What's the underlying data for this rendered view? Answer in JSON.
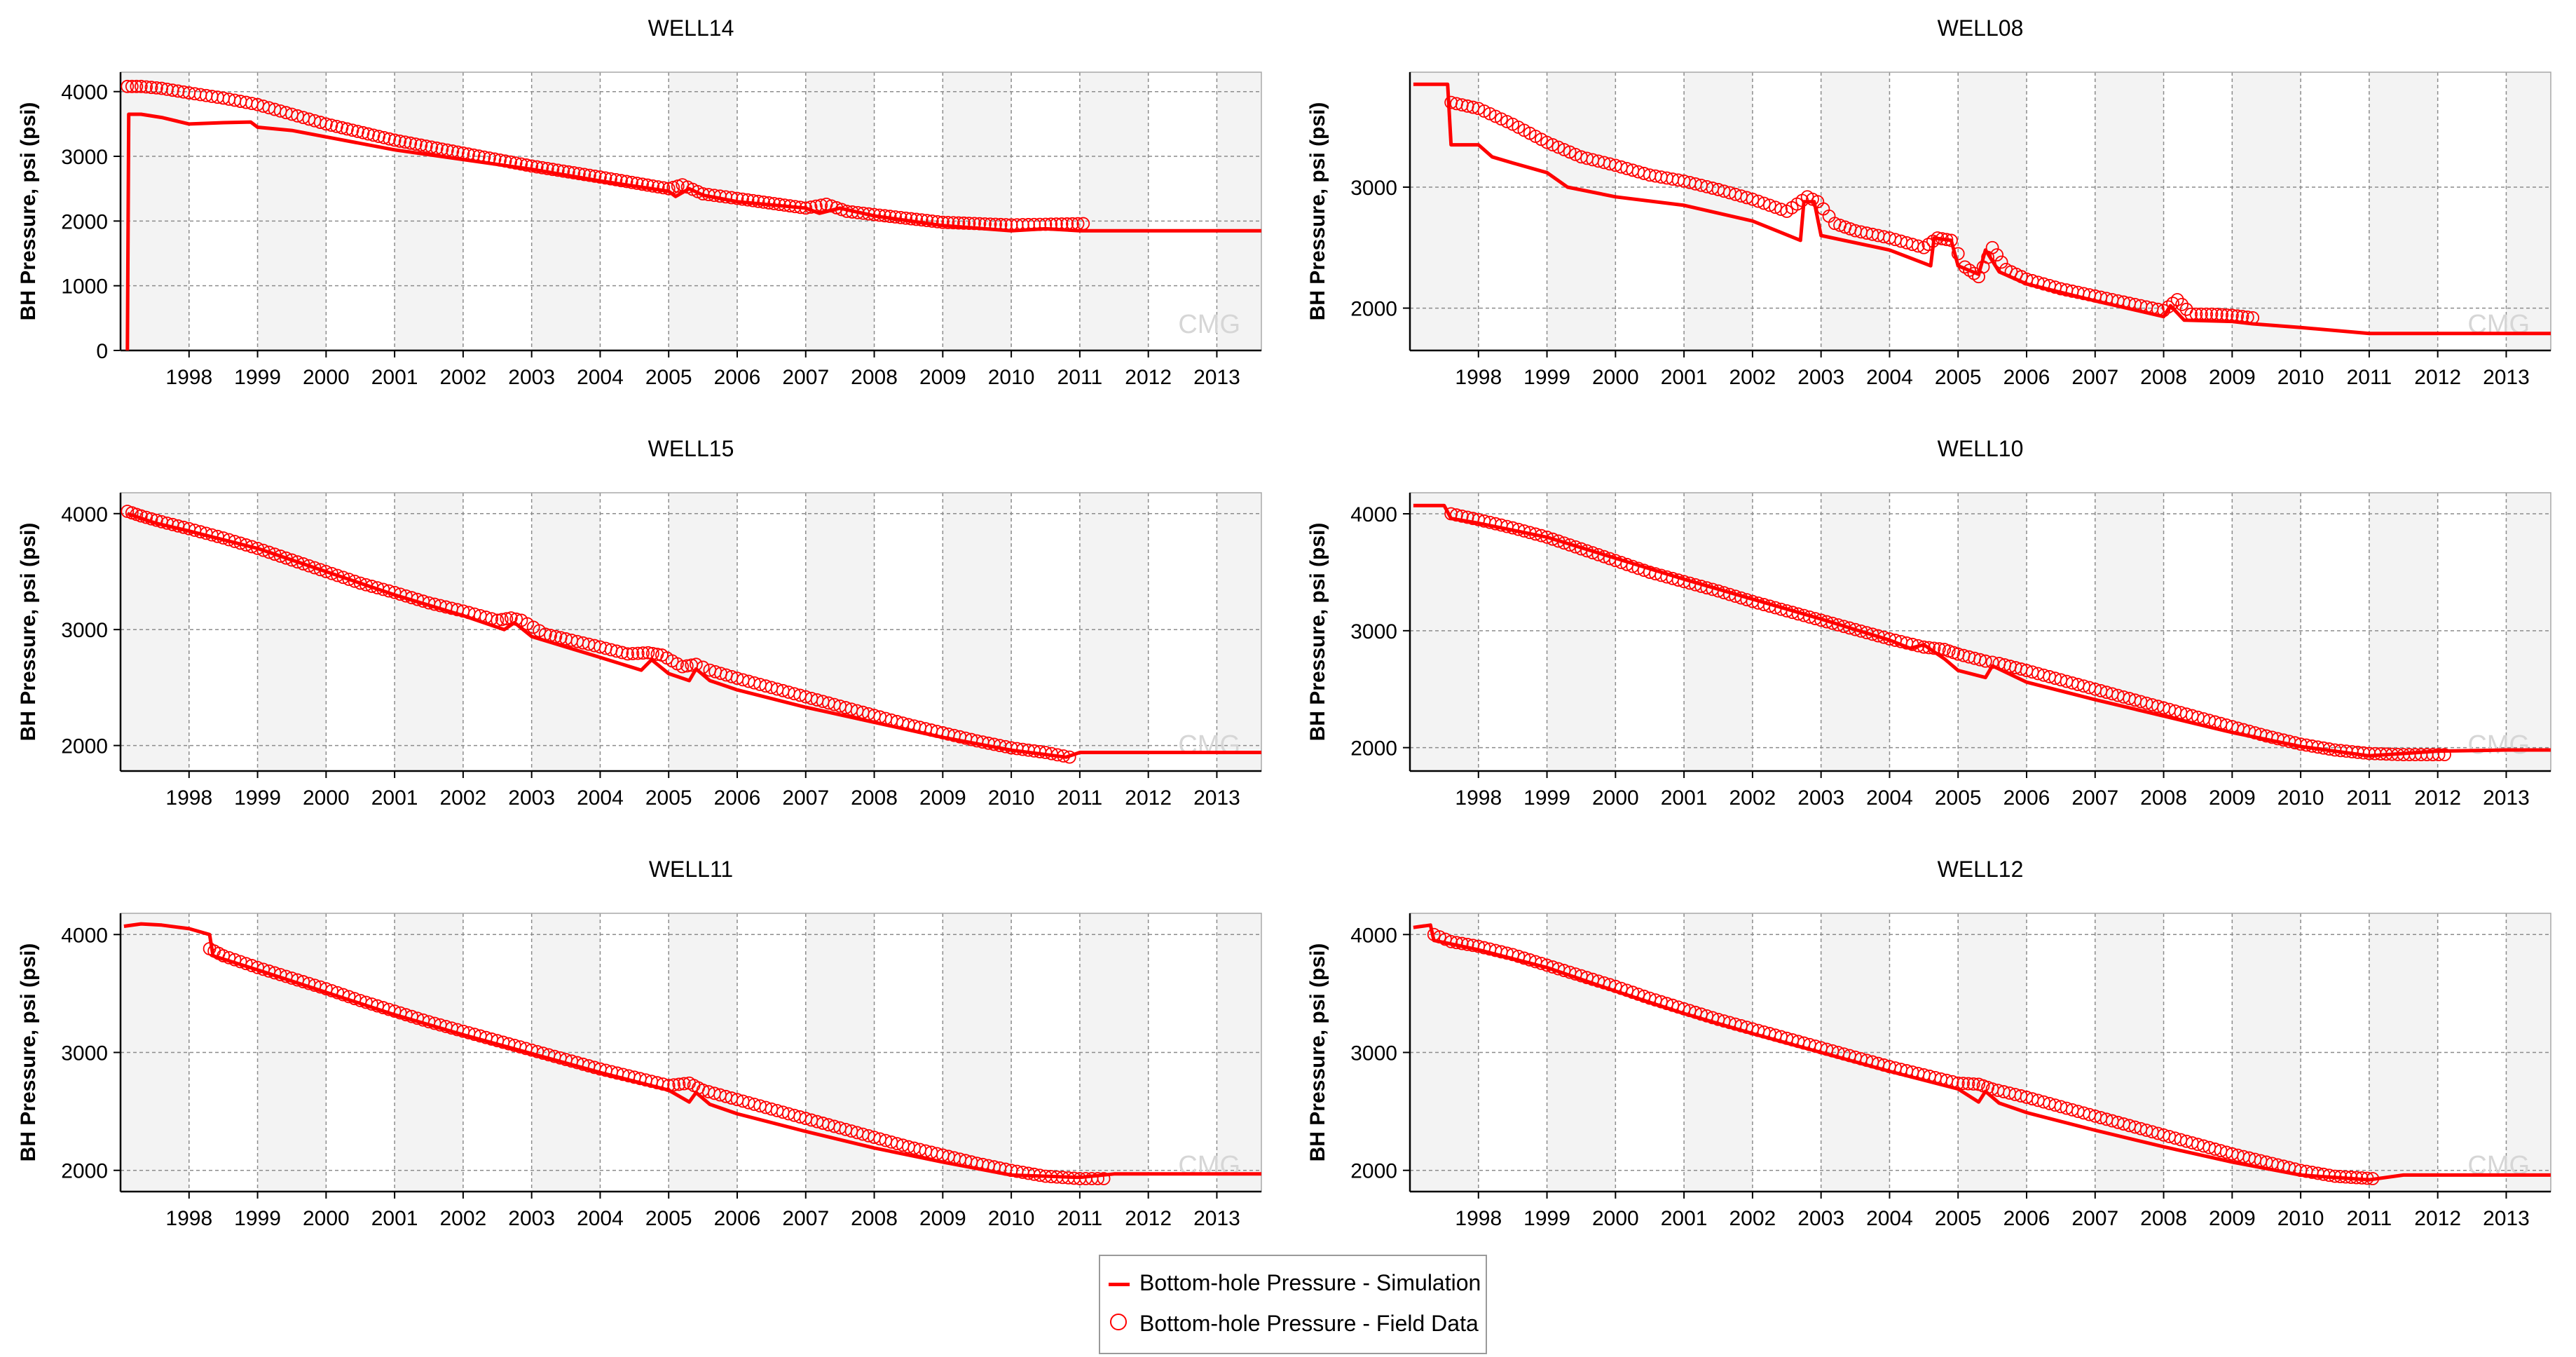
{
  "colors": {
    "simulation": "#ff0000",
    "field": "#ff0000",
    "plot_bg": "#f3f3f3",
    "grid": "#8c8c8c",
    "axis": "#000000",
    "watermark": "#d6d6d6"
  },
  "watermark": "CMG",
  "legend": {
    "simulation_label": "Bottom-hole Pressure - Simulation",
    "field_label": "Bottom-hole Pressure - Field Data"
  },
  "chart_data": [
    {
      "type": "line",
      "title": "WELL14",
      "xlabel": "",
      "ylabel": "BH Pressure, psi (psi)",
      "xlim": [
        1997,
        2013.65
      ],
      "ylim": [
        0,
        4300
      ],
      "yticks": [
        0,
        1000,
        2000,
        3000,
        4000
      ],
      "xticks": [
        1998,
        1999,
        2000,
        2001,
        2002,
        2003,
        2004,
        2005,
        2006,
        2007,
        2008,
        2009,
        2010,
        2011,
        2012,
        2013
      ],
      "series": [
        {
          "name": "Bottom-hole Pressure - Simulation",
          "style": "line",
          "x": [
            1997.1,
            1997.12,
            1997.15,
            1997.3,
            1997.6,
            1998.0,
            1998.5,
            1998.9,
            1999.0,
            1999.5,
            2000.0,
            2001.0,
            2002.0,
            2003.0,
            2004.0,
            2005.0,
            2005.1,
            2005.3,
            2005.5,
            2006.0,
            2007.0,
            2007.2,
            2007.5,
            2008.0,
            2009.0,
            2010.0,
            2010.5,
            2011.0,
            2012.0,
            2013.0,
            2013.65
          ],
          "y": [
            0,
            3650,
            3650,
            3650,
            3600,
            3500,
            3520,
            3530,
            3450,
            3400,
            3300,
            3100,
            2950,
            2800,
            2620,
            2460,
            2380,
            2500,
            2400,
            2300,
            2200,
            2120,
            2200,
            2080,
            1930,
            1850,
            1880,
            1850,
            1850,
            1850,
            1850
          ]
        },
        {
          "name": "Bottom-hole Pressure - Field Data",
          "style": "markers",
          "x": [
            1997.1,
            1997.3,
            1997.6,
            1998.0,
            1998.5,
            1999.0,
            1999.5,
            2000.0,
            2001.0,
            2002.0,
            2003.0,
            2004.0,
            2005.0,
            2005.2,
            2005.5,
            2006.0,
            2007.0,
            2007.3,
            2007.6,
            2008.0,
            2009.0,
            2010.0,
            2010.5,
            2011.05
          ],
          "y": [
            4080,
            4080,
            4050,
            3980,
            3900,
            3800,
            3650,
            3500,
            3250,
            3050,
            2850,
            2680,
            2500,
            2560,
            2420,
            2350,
            2200,
            2260,
            2150,
            2100,
            1980,
            1940,
            1950,
            1960
          ]
        }
      ]
    },
    {
      "type": "line",
      "title": "WELL08",
      "xlabel": "",
      "ylabel": "BH Pressure, psi (psi)",
      "xlim": [
        1997,
        2013.65
      ],
      "ylim": [
        1650,
        3950
      ],
      "yticks": [
        2000,
        3000
      ],
      "xticks": [
        1998,
        1999,
        2000,
        2001,
        2002,
        2003,
        2004,
        2005,
        2006,
        2007,
        2008,
        2009,
        2010,
        2011,
        2012,
        2013
      ],
      "series": [
        {
          "name": "Bottom-hole Pressure - Simulation",
          "style": "line",
          "x": [
            1997.05,
            1997.5,
            1997.55,
            1997.6,
            1998.0,
            1998.2,
            1998.5,
            1999.0,
            1999.3,
            2000.0,
            2001.0,
            2002.0,
            2002.7,
            2002.75,
            2002.9,
            2003.0,
            2004.0,
            2004.6,
            2004.65,
            2004.9,
            2005.0,
            2005.3,
            2005.4,
            2005.6,
            2006.0,
            2007.0,
            2008.0,
            2008.1,
            2008.3,
            2009.0,
            2009.3,
            2010.0,
            2011.0,
            2012.0,
            2013.0,
            2013.65
          ],
          "y": [
            3850,
            3850,
            3850,
            3350,
            3350,
            3250,
            3200,
            3120,
            3000,
            2920,
            2850,
            2720,
            2560,
            2880,
            2880,
            2600,
            2480,
            2350,
            2580,
            2560,
            2350,
            2280,
            2480,
            2300,
            2200,
            2060,
            1930,
            2020,
            1900,
            1890,
            1870,
            1840,
            1790,
            1790,
            1790,
            1790
          ]
        },
        {
          "name": "Bottom-hole Pressure - Field Data",
          "style": "markers",
          "x": [
            1997.6,
            1998.0,
            1998.5,
            1999.0,
            1999.5,
            2000.0,
            2000.5,
            2001.0,
            2001.5,
            2002.0,
            2002.5,
            2002.8,
            2002.95,
            2003.2,
            2003.5,
            2004.0,
            2004.5,
            2004.7,
            2004.9,
            2005.1,
            2005.3,
            2005.5,
            2005.7,
            2006.0,
            2006.5,
            2007.0,
            2007.5,
            2008.0,
            2008.2,
            2008.4,
            2008.7,
            2009.0,
            2009.3
          ],
          "y": [
            3700,
            3650,
            3520,
            3370,
            3250,
            3180,
            3100,
            3050,
            2980,
            2900,
            2800,
            2920,
            2880,
            2700,
            2640,
            2580,
            2500,
            2580,
            2560,
            2340,
            2260,
            2500,
            2320,
            2240,
            2160,
            2100,
            2040,
            1980,
            2070,
            1950,
            1950,
            1940,
            1920
          ]
        }
      ]
    },
    {
      "type": "line",
      "title": "WELL15",
      "xlabel": "",
      "ylabel": "BH Pressure, psi (psi)",
      "xlim": [
        1997,
        2013.65
      ],
      "ylim": [
        1780,
        4180
      ],
      "yticks": [
        2000,
        3000,
        4000
      ],
      "xticks": [
        1998,
        1999,
        2000,
        2001,
        2002,
        2003,
        2004,
        2005,
        2006,
        2007,
        2008,
        2009,
        2010,
        2011,
        2012,
        2013
      ],
      "series": [
        {
          "name": "Bottom-hole Pressure - Simulation",
          "style": "line",
          "x": [
            1997.1,
            1997.5,
            1998.0,
            1999.0,
            2000.0,
            2001.0,
            2002.0,
            2002.6,
            2002.75,
            2003.0,
            2004.0,
            2004.6,
            2004.75,
            2005.0,
            2005.3,
            2005.4,
            2005.6,
            2006.0,
            2007.0,
            2008.0,
            2009.0,
            2010.0,
            2010.8,
            2011.0,
            2012.0,
            2013.0,
            2013.65
          ],
          "y": [
            4000,
            3920,
            3850,
            3700,
            3500,
            3300,
            3120,
            3000,
            3060,
            2940,
            2760,
            2650,
            2740,
            2620,
            2560,
            2660,
            2560,
            2480,
            2330,
            2200,
            2070,
            1960,
            1900,
            1940,
            1940,
            1940,
            1940
          ]
        },
        {
          "name": "Bottom-hole Pressure - Field Data",
          "style": "markers",
          "x": [
            1997.1,
            1997.3,
            1997.6,
            1998.0,
            1998.5,
            1999.0,
            1999.5,
            2000.0,
            2000.5,
            2001.0,
            2001.5,
            2002.0,
            2002.5,
            2002.7,
            2002.85,
            2003.2,
            2003.5,
            2004.0,
            2004.4,
            2004.7,
            2004.9,
            2005.2,
            2005.4,
            2005.6,
            2006.0,
            2006.5,
            2007.0,
            2007.5,
            2008.0,
            2008.5,
            2009.0,
            2009.5,
            2010.0,
            2010.5,
            2010.85
          ],
          "y": [
            4020,
            3980,
            3930,
            3870,
            3790,
            3700,
            3600,
            3500,
            3400,
            3320,
            3230,
            3160,
            3080,
            3100,
            3080,
            2960,
            2920,
            2850,
            2790,
            2800,
            2780,
            2680,
            2700,
            2650,
            2580,
            2500,
            2420,
            2340,
            2260,
            2180,
            2110,
            2040,
            1980,
            1940,
            1900
          ]
        }
      ]
    },
    {
      "type": "line",
      "title": "WELL10",
      "xlabel": "",
      "ylabel": "BH Pressure, psi (psi)",
      "xlim": [
        1997,
        2013.65
      ],
      "ylim": [
        1800,
        4180
      ],
      "yticks": [
        2000,
        3000,
        4000
      ],
      "xticks": [
        1998,
        1999,
        2000,
        2001,
        2002,
        2003,
        2004,
        2005,
        2006,
        2007,
        2008,
        2009,
        2010,
        2011,
        2012,
        2013
      ],
      "series": [
        {
          "name": "Bottom-hole Pressure - Simulation",
          "style": "line",
          "x": [
            1997.05,
            1997.5,
            1997.6,
            1998.0,
            1999.0,
            2000.0,
            2001.0,
            2002.0,
            2003.0,
            2004.0,
            2004.3,
            2004.5,
            2004.8,
            2005.0,
            2005.4,
            2005.5,
            2006.0,
            2007.0,
            2008.0,
            2009.0,
            2010.0,
            2011.0,
            2011.5,
            2012.0,
            2013.0,
            2013.65
          ],
          "y": [
            4070,
            4070,
            3960,
            3920,
            3800,
            3620,
            3440,
            3270,
            3100,
            2920,
            2850,
            2880,
            2760,
            2660,
            2600,
            2700,
            2560,
            2410,
            2270,
            2130,
            2010,
            1930,
            1950,
            1970,
            1980,
            1980
          ]
        },
        {
          "name": "Bottom-hole Pressure - Field Data",
          "style": "markers",
          "x": [
            1997.6,
            1998.0,
            1998.5,
            1999.0,
            1999.5,
            2000.0,
            2000.5,
            2001.0,
            2001.5,
            2002.0,
            2002.5,
            2003.0,
            2003.5,
            2004.0,
            2004.5,
            2004.8,
            2005.0,
            2005.4,
            2005.6,
            2006.0,
            2006.5,
            2007.0,
            2007.5,
            2008.0,
            2008.5,
            2009.0,
            2009.5,
            2010.0,
            2010.5,
            2011.0,
            2011.5,
            2012.1
          ],
          "y": [
            4000,
            3950,
            3880,
            3800,
            3700,
            3600,
            3500,
            3420,
            3340,
            3250,
            3170,
            3090,
            3010,
            2930,
            2860,
            2840,
            2800,
            2740,
            2720,
            2660,
            2580,
            2500,
            2420,
            2340,
            2260,
            2180,
            2100,
            2030,
            1980,
            1950,
            1940,
            1940
          ]
        }
      ]
    },
    {
      "type": "line",
      "title": "WELL11",
      "xlabel": "",
      "ylabel": "BH Pressure, psi (psi)",
      "xlim": [
        1997,
        2013.65
      ],
      "ylim": [
        1820,
        4180
      ],
      "yticks": [
        2000,
        3000,
        4000
      ],
      "xticks": [
        1998,
        1999,
        2000,
        2001,
        2002,
        2003,
        2004,
        2005,
        2006,
        2007,
        2008,
        2009,
        2010,
        2011,
        2012,
        2013
      ],
      "series": [
        {
          "name": "Bottom-hole Pressure - Simulation",
          "style": "line",
          "x": [
            1997.05,
            1997.3,
            1997.6,
            1998.0,
            1998.3,
            1998.35,
            1999.0,
            2000.0,
            2001.0,
            2002.0,
            2003.0,
            2004.0,
            2005.0,
            2005.3,
            2005.4,
            2005.6,
            2006.0,
            2007.0,
            2008.0,
            2009.0,
            2010.0,
            2011.0,
            2011.5,
            2012.0,
            2013.0,
            2013.65
          ],
          "y": [
            4070,
            4090,
            4080,
            4050,
            4000,
            3820,
            3700,
            3510,
            3320,
            3150,
            2990,
            2830,
            2680,
            2580,
            2660,
            2560,
            2480,
            2330,
            2190,
            2070,
            1960,
            1940,
            1970,
            1970,
            1970,
            1970
          ]
        },
        {
          "name": "Bottom-hole Pressure - Field Data",
          "style": "markers",
          "x": [
            1998.3,
            1998.5,
            1999.0,
            1999.5,
            2000.0,
            2000.5,
            2001.0,
            2001.5,
            2002.0,
            2002.5,
            2003.0,
            2003.5,
            2004.0,
            2004.5,
            2005.0,
            2005.3,
            2005.5,
            2006.0,
            2006.5,
            2007.0,
            2007.5,
            2008.0,
            2008.5,
            2009.0,
            2009.5,
            2010.0,
            2010.5,
            2011.0,
            2011.35
          ],
          "y": [
            3880,
            3820,
            3720,
            3630,
            3540,
            3440,
            3350,
            3260,
            3180,
            3100,
            3020,
            2940,
            2860,
            2790,
            2720,
            2740,
            2680,
            2600,
            2520,
            2440,
            2360,
            2280,
            2200,
            2130,
            2060,
            2000,
            1950,
            1930,
            1930
          ]
        }
      ]
    },
    {
      "type": "line",
      "title": "WELL12",
      "xlabel": "",
      "ylabel": "BH Pressure, psi (psi)",
      "xlim": [
        1997,
        2013.65
      ],
      "ylim": [
        1820,
        4180
      ],
      "yticks": [
        2000,
        3000,
        4000
      ],
      "xticks": [
        1998,
        1999,
        2000,
        2001,
        2002,
        2003,
        2004,
        2005,
        2006,
        2007,
        2008,
        2009,
        2010,
        2011,
        2012,
        2013
      ],
      "series": [
        {
          "name": "Bottom-hole Pressure - Simulation",
          "style": "line",
          "x": [
            1997.05,
            1997.3,
            1997.35,
            1997.6,
            1998.0,
            1999.0,
            2000.0,
            2001.0,
            2002.0,
            2003.0,
            2004.0,
            2005.0,
            2005.3,
            2005.4,
            2005.6,
            2006.0,
            2007.0,
            2008.0,
            2009.0,
            2010.0,
            2011.0,
            2011.5,
            2012.0,
            2013.0,
            2013.65
          ],
          "y": [
            4060,
            4080,
            3950,
            3920,
            3870,
            3720,
            3520,
            3330,
            3160,
            3000,
            2840,
            2690,
            2580,
            2670,
            2570,
            2490,
            2340,
            2200,
            2070,
            1960,
            1920,
            1960,
            1960,
            1960,
            1960
          ]
        },
        {
          "name": "Bottom-hole Pressure - Field Data",
          "style": "markers",
          "x": [
            1997.35,
            1997.6,
            1998.0,
            1998.5,
            1999.0,
            1999.5,
            2000.0,
            2000.5,
            2001.0,
            2001.5,
            2002.0,
            2002.5,
            2003.0,
            2003.5,
            2004.0,
            2004.5,
            2005.0,
            2005.3,
            2005.5,
            2006.0,
            2006.5,
            2007.0,
            2007.5,
            2008.0,
            2008.5,
            2009.0,
            2009.5,
            2010.0,
            2010.5,
            2011.05
          ],
          "y": [
            4000,
            3940,
            3900,
            3830,
            3740,
            3650,
            3560,
            3460,
            3370,
            3280,
            3200,
            3120,
            3040,
            2960,
            2880,
            2810,
            2740,
            2730,
            2690,
            2620,
            2540,
            2460,
            2380,
            2300,
            2220,
            2140,
            2070,
            2000,
            1950,
            1930
          ]
        }
      ]
    }
  ]
}
